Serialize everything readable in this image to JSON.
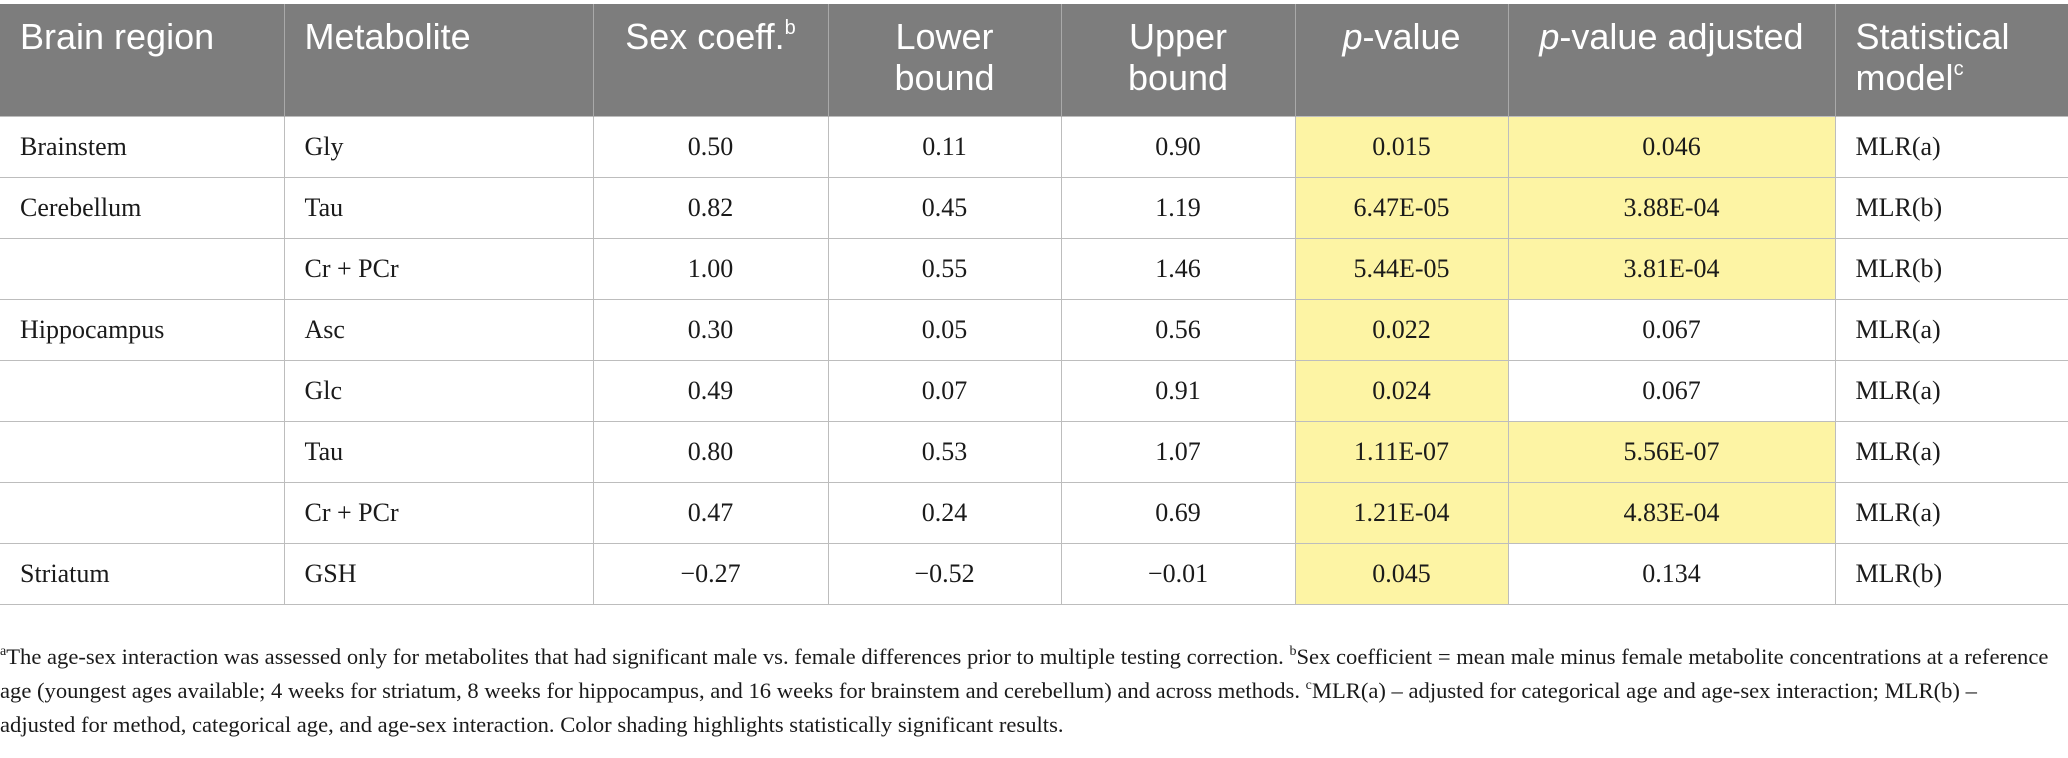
{
  "table": {
    "headers": [
      {
        "text": "Brain region",
        "sup": "",
        "italic_prefix": ""
      },
      {
        "text": "Metabolite",
        "sup": "",
        "italic_prefix": ""
      },
      {
        "text": "Sex coeff.",
        "sup": "b",
        "italic_prefix": ""
      },
      {
        "text": "Lower bound",
        "sup": "",
        "italic_prefix": ""
      },
      {
        "text": "Upper bound",
        "sup": "",
        "italic_prefix": ""
      },
      {
        "text": "-value",
        "sup": "",
        "italic_prefix": "p"
      },
      {
        "text": "-value adjusted",
        "sup": "",
        "italic_prefix": "p"
      },
      {
        "text": "Statistical model",
        "sup": "c",
        "italic_prefix": ""
      }
    ],
    "rows": [
      {
        "region": "Brainstem",
        "metabolite": "Gly",
        "coeff": "0.50",
        "lower": "0.11",
        "upper": "0.90",
        "p": "0.015",
        "p_adj": "0.046",
        "model": "MLR(a)",
        "p_sig": true,
        "p_adj_sig": true
      },
      {
        "region": "Cerebellum",
        "metabolite": "Tau",
        "coeff": "0.82",
        "lower": "0.45",
        "upper": "1.19",
        "p": "6.47E-05",
        "p_adj": "3.88E-04",
        "model": "MLR(b)",
        "p_sig": true,
        "p_adj_sig": true
      },
      {
        "region": "",
        "metabolite": "Cr + PCr",
        "coeff": "1.00",
        "lower": "0.55",
        "upper": "1.46",
        "p": "5.44E-05",
        "p_adj": "3.81E-04",
        "model": "MLR(b)",
        "p_sig": true,
        "p_adj_sig": true
      },
      {
        "region": "Hippocampus",
        "metabolite": "Asc",
        "coeff": "0.30",
        "lower": "0.05",
        "upper": "0.56",
        "p": "0.022",
        "p_adj": "0.067",
        "model": "MLR(a)",
        "p_sig": true,
        "p_adj_sig": false
      },
      {
        "region": "",
        "metabolite": "Glc",
        "coeff": "0.49",
        "lower": "0.07",
        "upper": "0.91",
        "p": "0.024",
        "p_adj": "0.067",
        "model": "MLR(a)",
        "p_sig": true,
        "p_adj_sig": false
      },
      {
        "region": "",
        "metabolite": "Tau",
        "coeff": "0.80",
        "lower": "0.53",
        "upper": "1.07",
        "p": "1.11E-07",
        "p_adj": "5.56E-07",
        "model": "MLR(a)",
        "p_sig": true,
        "p_adj_sig": true
      },
      {
        "region": "",
        "metabolite": "Cr + PCr",
        "coeff": "0.47",
        "lower": "0.24",
        "upper": "0.69",
        "p": "1.21E-04",
        "p_adj": "4.83E-04",
        "model": "MLR(a)",
        "p_sig": true,
        "p_adj_sig": true
      },
      {
        "region": "Striatum",
        "metabolite": "GSH",
        "coeff": "−0.27",
        "lower": "−0.52",
        "upper": "−0.01",
        "p": "0.045",
        "p_adj": "0.134",
        "model": "MLR(b)",
        "p_sig": true,
        "p_adj_sig": false
      }
    ]
  },
  "footnotes": [
    {
      "mark": "a",
      "text": "The age-sex interaction was assessed only for metabolites that had significant male vs. female differences prior to multiple testing correction. "
    },
    {
      "mark": "b",
      "text": "Sex coefficient = mean male minus female metabolite concentrations at a reference age (youngest ages available; 4 weeks for striatum, 8 weeks for hippocampus, and 16 weeks for brainstem and cerebellum) and across methods. "
    },
    {
      "mark": "c",
      "text": "MLR(a) – adjusted for categorical age and age-sex interaction; MLR(b) – adjusted for method, categorical age, and age-sex interaction. Color shading highlights statistically significant results."
    }
  ],
  "colors": {
    "header_bg": "#7d7d7d",
    "highlight": "#fdf4a4",
    "grid": "#bdbdbd"
  }
}
